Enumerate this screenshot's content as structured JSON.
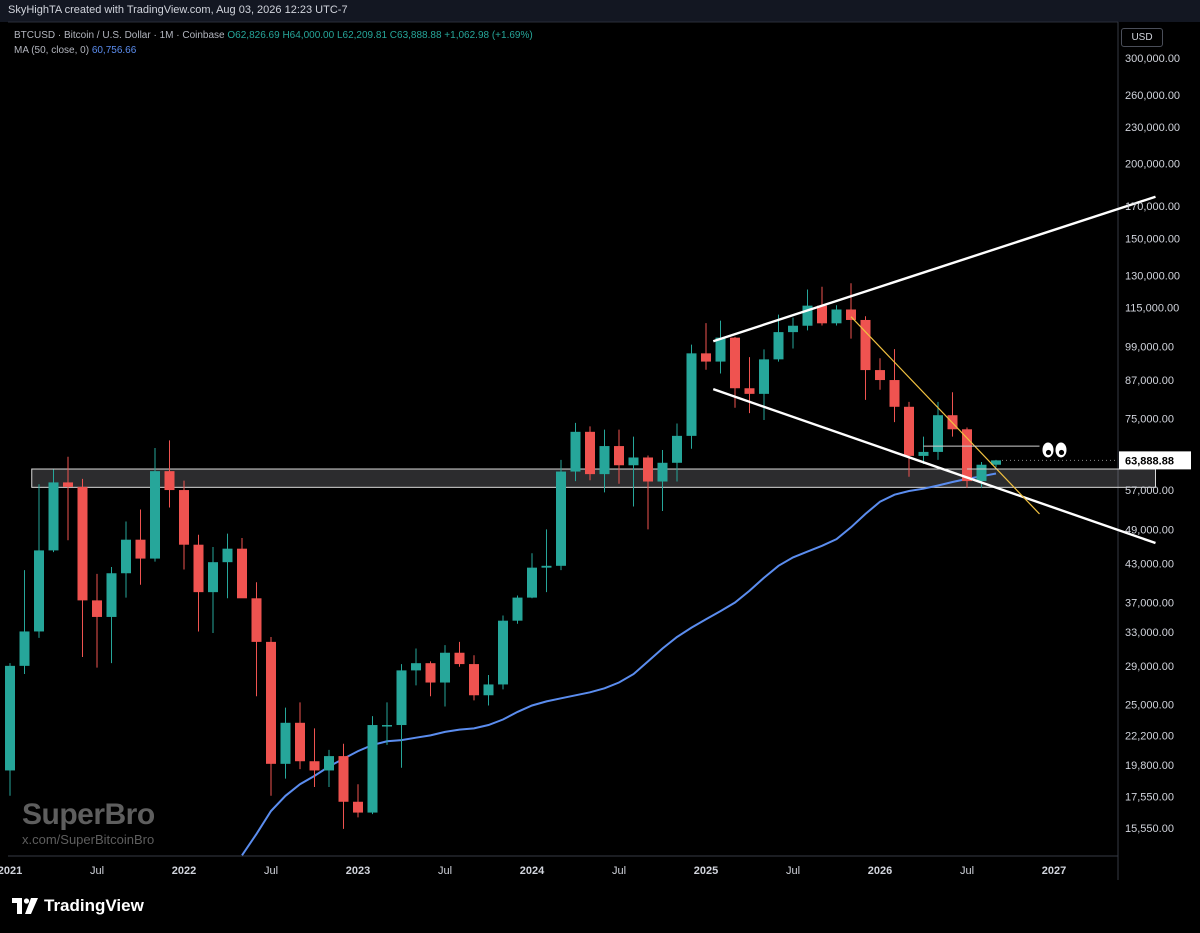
{
  "header": {
    "title": "SkyHighTA created with TradingView.com, Aug 03, 2026 12:23 UTC-7"
  },
  "legend": {
    "symbol": "BTCUSD · Bitcoin / U.S. Dollar · 1M · Coinbase",
    "open": "O62,826.69",
    "high": "H64,000.00",
    "low": "L62,209.81",
    "close": "C63,888.88",
    "change": "+1,062.98 (+1.69%)",
    "ma_label": "MA (50, close, 0)",
    "ma_value": "60,756.66"
  },
  "currency": "USD",
  "watermark": {
    "name": "SuperBro",
    "handle": "x.com/SuperBitcoinBro"
  },
  "footer": {
    "brand": "TradingView"
  },
  "colors": {
    "up": "#26a69a",
    "down": "#ef5350",
    "ma": "#5b8def",
    "trend": "#ffffff",
    "yellow": "#f0c040",
    "price_label_bg": "#ffffff"
  },
  "chart_data": {
    "type": "candlestick",
    "y_scale": "log",
    "ylim": [
      14000,
      330000
    ],
    "x_start": "2020-12",
    "x_end": "2027-02",
    "x_ticks": [
      {
        "label": "2021",
        "m": 0
      },
      {
        "label": "Jul",
        "m": 6
      },
      {
        "label": "2022",
        "m": 12
      },
      {
        "label": "Jul",
        "m": 18
      },
      {
        "label": "2023",
        "m": 24
      },
      {
        "label": "Jul",
        "m": 30
      },
      {
        "label": "2024",
        "m": 36
      },
      {
        "label": "Jul",
        "m": 42
      },
      {
        "label": "2025",
        "m": 48
      },
      {
        "label": "Jul",
        "m": 54
      },
      {
        "label": "2026",
        "m": 60
      },
      {
        "label": "Jul",
        "m": 66
      },
      {
        "label": "2027",
        "m": 72
      }
    ],
    "y_ticks": [
      {
        "label": "300,000.00",
        "v": 300000
      },
      {
        "label": "260,000.00",
        "v": 260000
      },
      {
        "label": "230,000.00",
        "v": 230000
      },
      {
        "label": "200,000.00",
        "v": 200000
      },
      {
        "label": "170,000.00",
        "v": 170000
      },
      {
        "label": "150,000.00",
        "v": 150000
      },
      {
        "label": "130,000.00",
        "v": 130000
      },
      {
        "label": "115,000.00",
        "v": 115000
      },
      {
        "label": "99,000.00",
        "v": 99000
      },
      {
        "label": "87,000.00",
        "v": 87000
      },
      {
        "label": "75,000.00",
        "v": 75000
      },
      {
        "label": "57,000.00",
        "v": 57000
      },
      {
        "label": "49,000.00",
        "v": 49000
      },
      {
        "label": "43,000.00",
        "v": 43000
      },
      {
        "label": "37,000.00",
        "v": 37000
      },
      {
        "label": "33,000.00",
        "v": 33000
      },
      {
        "label": "29,000.00",
        "v": 29000
      },
      {
        "label": "25,000.00",
        "v": 25000
      },
      {
        "label": "22,200.00",
        "v": 22200
      },
      {
        "label": "19,800.00",
        "v": 19800
      },
      {
        "label": "17,550.00",
        "v": 17550
      },
      {
        "label": "15,550.00",
        "v": 15550
      }
    ],
    "last_price": {
      "label": "63,888.88",
      "v": 63888.88
    },
    "candles": [
      {
        "m": 0,
        "o": 19400,
        "h": 29300,
        "l": 17600,
        "c": 29000
      },
      {
        "m": 1,
        "o": 29000,
        "h": 41900,
        "l": 28100,
        "c": 33100
      },
      {
        "m": 2,
        "o": 33100,
        "h": 58300,
        "l": 32300,
        "c": 45200
      },
      {
        "m": 3,
        "o": 45200,
        "h": 61700,
        "l": 44900,
        "c": 58700
      },
      {
        "m": 4,
        "o": 58700,
        "h": 64800,
        "l": 47000,
        "c": 57700
      },
      {
        "m": 5,
        "o": 57700,
        "h": 59500,
        "l": 30000,
        "c": 37300
      },
      {
        "m": 6,
        "o": 37300,
        "h": 41300,
        "l": 28800,
        "c": 35000
      },
      {
        "m": 7,
        "o": 35000,
        "h": 42400,
        "l": 29300,
        "c": 41400
      },
      {
        "m": 8,
        "o": 41400,
        "h": 50500,
        "l": 37700,
        "c": 47100
      },
      {
        "m": 9,
        "o": 47100,
        "h": 52900,
        "l": 39600,
        "c": 43800
      },
      {
        "m": 10,
        "o": 43800,
        "h": 67000,
        "l": 43300,
        "c": 61300
      },
      {
        "m": 11,
        "o": 61300,
        "h": 69000,
        "l": 53300,
        "c": 57000
      },
      {
        "m": 12,
        "o": 57000,
        "h": 59100,
        "l": 42000,
        "c": 46200
      },
      {
        "m": 13,
        "o": 46200,
        "h": 48000,
        "l": 33100,
        "c": 38500
      },
      {
        "m": 14,
        "o": 38500,
        "h": 45800,
        "l": 32900,
        "c": 43200
      },
      {
        "m": 15,
        "o": 43200,
        "h": 48200,
        "l": 37600,
        "c": 45500
      },
      {
        "m": 16,
        "o": 45500,
        "h": 47400,
        "l": 37700,
        "c": 37600
      },
      {
        "m": 17,
        "o": 37600,
        "h": 40000,
        "l": 25800,
        "c": 31800
      },
      {
        "m": 18,
        "o": 31800,
        "h": 32400,
        "l": 17600,
        "c": 19900
      },
      {
        "m": 19,
        "o": 19900,
        "h": 24700,
        "l": 18800,
        "c": 23300
      },
      {
        "m": 20,
        "o": 23300,
        "h": 25200,
        "l": 19500,
        "c": 20100
      },
      {
        "m": 21,
        "o": 20100,
        "h": 22800,
        "l": 18200,
        "c": 19400
      },
      {
        "m": 22,
        "o": 19400,
        "h": 21000,
        "l": 18200,
        "c": 20500
      },
      {
        "m": 23,
        "o": 20500,
        "h": 21500,
        "l": 15500,
        "c": 17200
      },
      {
        "m": 24,
        "o": 17200,
        "h": 18400,
        "l": 16200,
        "c": 16500
      },
      {
        "m": 25,
        "o": 16500,
        "h": 23900,
        "l": 16400,
        "c": 23100
      },
      {
        "m": 26,
        "o": 23100,
        "h": 25200,
        "l": 21400,
        "c": 23100
      },
      {
        "m": 27,
        "o": 23100,
        "h": 29200,
        "l": 19600,
        "c": 28500
      },
      {
        "m": 28,
        "o": 28500,
        "h": 31000,
        "l": 26900,
        "c": 29300
      },
      {
        "m": 29,
        "o": 29300,
        "h": 29500,
        "l": 25800,
        "c": 27200
      },
      {
        "m": 30,
        "o": 27200,
        "h": 31400,
        "l": 24800,
        "c": 30500
      },
      {
        "m": 31,
        "o": 30500,
        "h": 31800,
        "l": 28900,
        "c": 29200
      },
      {
        "m": 32,
        "o": 29200,
        "h": 30200,
        "l": 25400,
        "c": 25900
      },
      {
        "m": 33,
        "o": 25900,
        "h": 28000,
        "l": 24900,
        "c": 27000
      },
      {
        "m": 34,
        "o": 27000,
        "h": 35200,
        "l": 26500,
        "c": 34500
      },
      {
        "m": 35,
        "o": 34500,
        "h": 38000,
        "l": 34100,
        "c": 37700
      },
      {
        "m": 36,
        "o": 37700,
        "h": 44700,
        "l": 37600,
        "c": 42300
      },
      {
        "m": 37,
        "o": 42300,
        "h": 49000,
        "l": 38500,
        "c": 42600
      },
      {
        "m": 38,
        "o": 42600,
        "h": 64000,
        "l": 41900,
        "c": 61200
      },
      {
        "m": 39,
        "o": 61200,
        "h": 73800,
        "l": 59000,
        "c": 71300
      },
      {
        "m": 40,
        "o": 71300,
        "h": 72800,
        "l": 59200,
        "c": 60600
      },
      {
        "m": 41,
        "o": 60600,
        "h": 71900,
        "l": 56500,
        "c": 67500
      },
      {
        "m": 42,
        "o": 67500,
        "h": 71900,
        "l": 58400,
        "c": 62700
      },
      {
        "m": 43,
        "o": 62700,
        "h": 70000,
        "l": 53500,
        "c": 64600
      },
      {
        "m": 44,
        "o": 64600,
        "h": 65100,
        "l": 49000,
        "c": 58900
      },
      {
        "m": 45,
        "o": 58900,
        "h": 66500,
        "l": 52600,
        "c": 63300
      },
      {
        "m": 46,
        "o": 63300,
        "h": 73600,
        "l": 58900,
        "c": 70200
      },
      {
        "m": 47,
        "o": 70200,
        "h": 99700,
        "l": 66800,
        "c": 96400
      },
      {
        "m": 48,
        "o": 96400,
        "h": 108300,
        "l": 90500,
        "c": 93400
      },
      {
        "m": 49,
        "o": 93400,
        "h": 109300,
        "l": 89200,
        "c": 102400
      },
      {
        "m": 50,
        "o": 102400,
        "h": 102700,
        "l": 78200,
        "c": 84300
      },
      {
        "m": 51,
        "o": 84300,
        "h": 95000,
        "l": 76600,
        "c": 82500
      },
      {
        "m": 52,
        "o": 82500,
        "h": 97900,
        "l": 74600,
        "c": 94200
      },
      {
        "m": 53,
        "o": 94200,
        "h": 111900,
        "l": 93400,
        "c": 104600
      },
      {
        "m": 54,
        "o": 104600,
        "h": 110600,
        "l": 98200,
        "c": 107200
      },
      {
        "m": 55,
        "o": 107200,
        "h": 123200,
        "l": 105300,
        "c": 115800
      },
      {
        "m": 56,
        "o": 115800,
        "h": 124500,
        "l": 107300,
        "c": 108200
      },
      {
        "m": 57,
        "o": 108200,
        "h": 116000,
        "l": 107300,
        "c": 114100
      },
      {
        "m": 58,
        "o": 114100,
        "h": 126200,
        "l": 102000,
        "c": 109600
      },
      {
        "m": 59,
        "o": 109600,
        "h": 111200,
        "l": 80600,
        "c": 90400
      },
      {
        "m": 60,
        "o": 90400,
        "h": 94600,
        "l": 83800,
        "c": 87000
      },
      {
        "m": 61,
        "o": 87000,
        "h": 98000,
        "l": 74000,
        "c": 78500
      },
      {
        "m": 62,
        "o": 78500,
        "h": 80000,
        "l": 60000,
        "c": 65000
      },
      {
        "m": 63,
        "o": 65000,
        "h": 70000,
        "l": 63000,
        "c": 66000
      },
      {
        "m": 64,
        "o": 66000,
        "h": 80000,
        "l": 64000,
        "c": 76000
      },
      {
        "m": 65,
        "o": 76000,
        "h": 83000,
        "l": 70000,
        "c": 72000
      },
      {
        "m": 66,
        "o": 72000,
        "h": 72500,
        "l": 57500,
        "c": 59000
      },
      {
        "m": 67,
        "o": 59000,
        "h": 63500,
        "l": 57500,
        "c": 62826.69
      },
      {
        "m": 68,
        "o": 62826.69,
        "h": 64000,
        "l": 62209.81,
        "c": 63888.88
      }
    ],
    "ma": [
      {
        "m": 16,
        "v": 14000
      },
      {
        "m": 17,
        "v": 15200
      },
      {
        "m": 18,
        "v": 16600
      },
      {
        "m": 19,
        "v": 17600
      },
      {
        "m": 20,
        "v": 18400
      },
      {
        "m": 21,
        "v": 19000
      },
      {
        "m": 22,
        "v": 19700
      },
      {
        "m": 23,
        "v": 20300
      },
      {
        "m": 24,
        "v": 20900
      },
      {
        "m": 25,
        "v": 21400
      },
      {
        "m": 26,
        "v": 21700
      },
      {
        "m": 27,
        "v": 21800
      },
      {
        "m": 28,
        "v": 22000
      },
      {
        "m": 29,
        "v": 22200
      },
      {
        "m": 30,
        "v": 22500
      },
      {
        "m": 31,
        "v": 22700
      },
      {
        "m": 32,
        "v": 22800
      },
      {
        "m": 33,
        "v": 23100
      },
      {
        "m": 34,
        "v": 23600
      },
      {
        "m": 35,
        "v": 24300
      },
      {
        "m": 36,
        "v": 24900
      },
      {
        "m": 37,
        "v": 25300
      },
      {
        "m": 38,
        "v": 25600
      },
      {
        "m": 39,
        "v": 25900
      },
      {
        "m": 40,
        "v": 26200
      },
      {
        "m": 41,
        "v": 26600
      },
      {
        "m": 42,
        "v": 27200
      },
      {
        "m": 43,
        "v": 28100
      },
      {
        "m": 44,
        "v": 29500
      },
      {
        "m": 45,
        "v": 31000
      },
      {
        "m": 46,
        "v": 32400
      },
      {
        "m": 47,
        "v": 33600
      },
      {
        "m": 48,
        "v": 34700
      },
      {
        "m": 49,
        "v": 35800
      },
      {
        "m": 50,
        "v": 37000
      },
      {
        "m": 51,
        "v": 38700
      },
      {
        "m": 52,
        "v": 40700
      },
      {
        "m": 53,
        "v": 42600
      },
      {
        "m": 54,
        "v": 44000
      },
      {
        "m": 55,
        "v": 45000
      },
      {
        "m": 56,
        "v": 46000
      },
      {
        "m": 57,
        "v": 47200
      },
      {
        "m": 58,
        "v": 49400
      },
      {
        "m": 59,
        "v": 52000
      },
      {
        "m": 60,
        "v": 54500
      },
      {
        "m": 61,
        "v": 56000
      },
      {
        "m": 62,
        "v": 56800
      },
      {
        "m": 63,
        "v": 57300
      },
      {
        "m": 64,
        "v": 58000
      },
      {
        "m": 65,
        "v": 58800
      },
      {
        "m": 66,
        "v": 59500
      },
      {
        "m": 67,
        "v": 60100
      },
      {
        "m": 68,
        "v": 60756.66
      }
    ],
    "support_zone": {
      "m_start": 1.5,
      "m_end": 79,
      "low": 57600,
      "high": 61800
    },
    "trendlines": [
      {
        "name": "upper",
        "color": "#ffffff",
        "m1": 48.5,
        "v1": 101000,
        "m2": 79,
        "v2": 176000
      },
      {
        "name": "lower",
        "color": "#ffffff",
        "m1": 48.5,
        "v1": 84000,
        "m2": 79,
        "v2": 46500
      },
      {
        "name": "yellow",
        "color": "#f0c040",
        "m1": 58,
        "v1": 111000,
        "m2": 71,
        "v2": 52000
      }
    ],
    "horizontal_marks": [
      {
        "m1": 63,
        "m2": 71,
        "v": 67500
      },
      {
        "m1": 66,
        "m2": 69,
        "v": 61800
      }
    ],
    "annotation": {
      "emoji": "eyes",
      "m": 72,
      "v": 66500
    }
  }
}
